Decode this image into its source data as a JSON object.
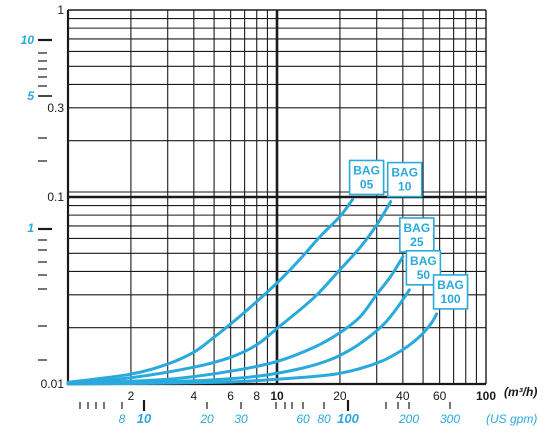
{
  "chart_data": {
    "type": "line",
    "title": "",
    "x_scale": "log",
    "y_scale": "log",
    "xlim": [
      1,
      100
    ],
    "ylim": [
      0.01,
      1
    ],
    "grid": true,
    "x_unit": "(m³/h)",
    "x2_unit": "(US gpm)",
    "x_ticks": [
      {
        "value": 2,
        "label": "2"
      },
      {
        "value": 4,
        "label": "4"
      },
      {
        "value": 6,
        "label": "6"
      },
      {
        "value": 8,
        "label": "8"
      },
      {
        "value": 10,
        "label": "10"
      },
      {
        "value": 20,
        "label": "20"
      },
      {
        "value": 40,
        "label": "40"
      },
      {
        "value": 60,
        "label": "60"
      },
      {
        "value": 100,
        "label": "100"
      }
    ],
    "x2_ticks": [
      {
        "label": "8",
        "major": false
      },
      {
        "label": "10",
        "major": true
      },
      {
        "label": "20",
        "major": false
      },
      {
        "label": "30",
        "major": false
      },
      {
        "label": "60",
        "major": false
      },
      {
        "label": "80",
        "major": false
      },
      {
        "label": "100",
        "major": true
      },
      {
        "label": "200",
        "major": false
      },
      {
        "label": "300",
        "major": false
      }
    ],
    "y_ticks": [
      {
        "value": 1,
        "label": "1"
      },
      {
        "value": 0.3,
        "label": "0.3"
      },
      {
        "value": 0.1,
        "label": "0.1"
      },
      {
        "value": 0.01,
        "label": "0.01"
      }
    ],
    "y2_ticks": [
      {
        "label": "10"
      },
      {
        "label": "5"
      },
      {
        "label": "1"
      }
    ],
    "series": [
      {
        "name": "BAG\n05",
        "x": [
          1,
          2,
          3,
          4,
          5,
          7,
          10,
          13,
          16,
          20,
          23
        ],
        "y": [
          0.0102,
          0.0113,
          0.0128,
          0.0148,
          0.0178,
          0.0242,
          0.0347,
          0.047,
          0.0611,
          0.0787,
          0.097
        ]
      },
      {
        "name": "BAG\n10",
        "x": [
          1,
          2,
          4,
          6,
          8,
          10,
          15,
          20,
          25,
          30,
          35
        ],
        "y": [
          0.0101,
          0.0108,
          0.0123,
          0.0139,
          0.0162,
          0.0198,
          0.0289,
          0.0408,
          0.0538,
          0.0709,
          0.0945
        ]
      },
      {
        "name": "BAG\n25",
        "x": [
          1,
          3,
          6,
          10,
          15,
          20,
          25,
          30,
          35,
          40
        ],
        "y": [
          0.01,
          0.0106,
          0.0117,
          0.0132,
          0.0157,
          0.0188,
          0.0229,
          0.0301,
          0.0376,
          0.0478
        ]
      },
      {
        "name": "BAG\n50",
        "x": [
          1,
          4,
          8,
          13,
          18,
          23,
          28,
          33,
          38,
          43
        ],
        "y": [
          0.01,
          0.0104,
          0.011,
          0.0121,
          0.0135,
          0.0155,
          0.0181,
          0.0213,
          0.026,
          0.0319
        ]
      },
      {
        "name": "BAG\n100",
        "x": [
          1,
          5,
          10,
          18,
          25,
          32,
          39,
          45,
          50,
          55,
          58
        ],
        "y": [
          0.01,
          0.0102,
          0.0106,
          0.0112,
          0.0121,
          0.0133,
          0.015,
          0.0168,
          0.0187,
          0.0213,
          0.0237
        ]
      }
    ],
    "series_color": "#29a9dc",
    "grid_color": "#1a1a1a"
  }
}
